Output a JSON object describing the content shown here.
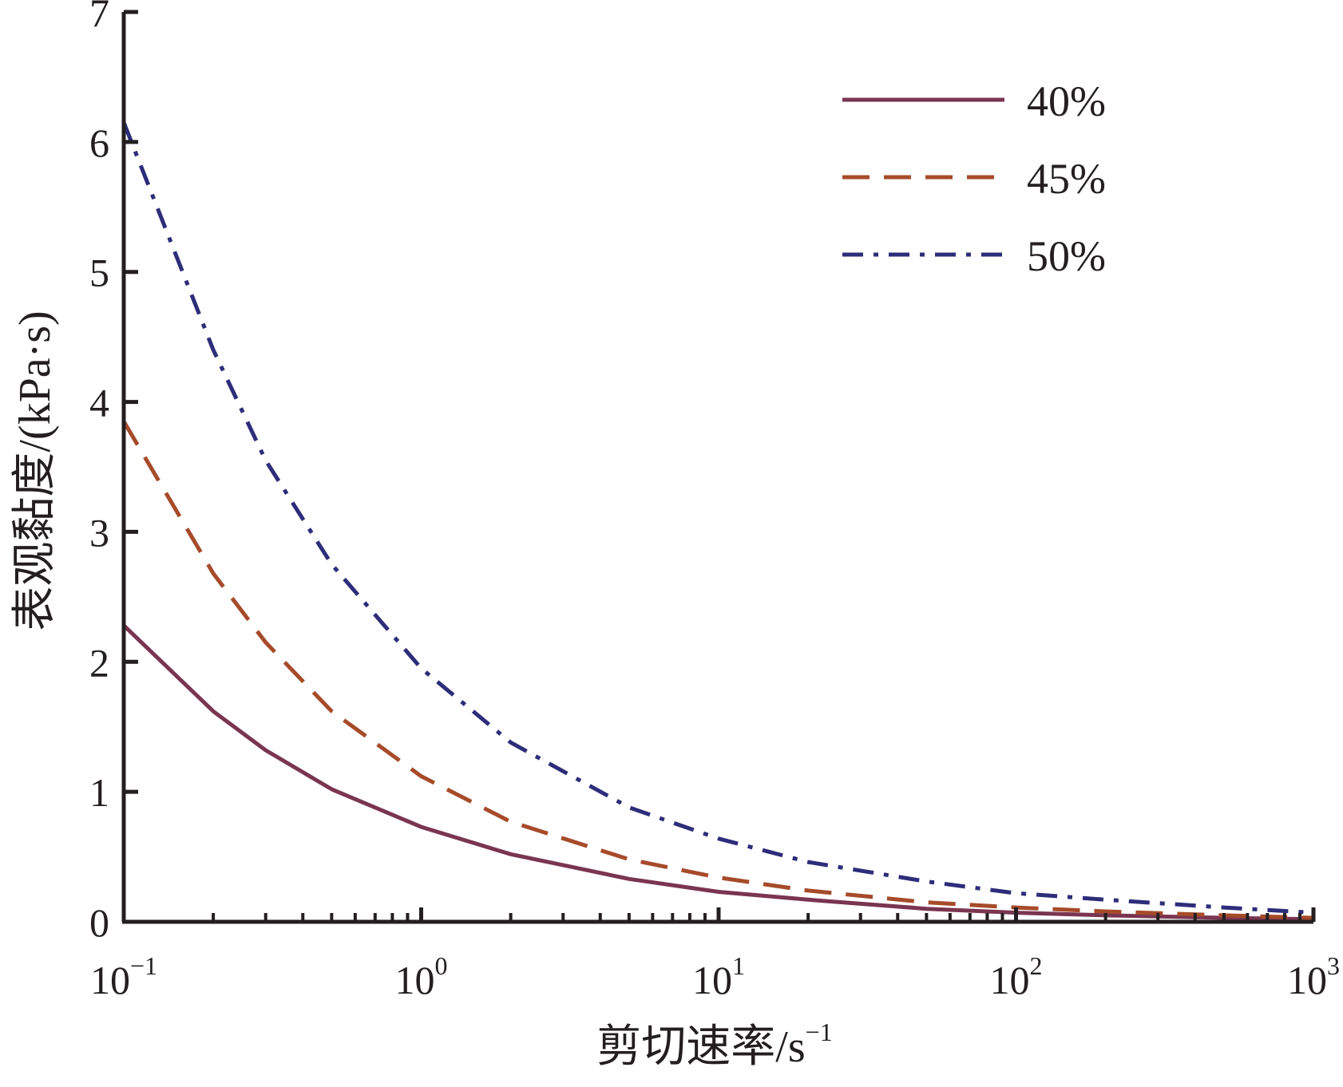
{
  "chart_data": {
    "type": "line",
    "xlabel": "剪切速率/s",
    "xlabel_sup": "−1",
    "ylabel": "表观黏度/(kPa·s)",
    "x_scale": "log",
    "xlim": [
      0.1,
      1000
    ],
    "ylim": [
      0,
      7
    ],
    "grid": false,
    "legend_position": "top-right",
    "y_ticks": [
      "0",
      "1",
      "2",
      "3",
      "4",
      "5",
      "6",
      "7"
    ],
    "x_ticks": [
      {
        "base": "10",
        "exp": "−1"
      },
      {
        "base": "10",
        "exp": "0"
      },
      {
        "base": "10",
        "exp": "1"
      },
      {
        "base": "10",
        "exp": "2"
      },
      {
        "base": "10",
        "exp": "3"
      }
    ],
    "series": [
      {
        "name": "40%",
        "color": "#7a3550",
        "dash": "solid",
        "x": [
          0.1,
          0.2,
          0.3,
          0.5,
          1,
          2,
          5,
          10,
          20,
          50,
          100,
          200,
          500,
          1000
        ],
        "y": [
          2.28,
          1.62,
          1.32,
          1.02,
          0.73,
          0.52,
          0.33,
          0.23,
          0.17,
          0.1,
          0.07,
          0.05,
          0.03,
          0.02
        ]
      },
      {
        "name": "45%",
        "color": "#a64b2a",
        "dash": "dashed",
        "x": [
          0.1,
          0.2,
          0.3,
          0.5,
          1,
          2,
          5,
          10,
          20,
          50,
          100,
          200,
          500,
          1000
        ],
        "y": [
          3.85,
          2.68,
          2.15,
          1.62,
          1.12,
          0.77,
          0.48,
          0.34,
          0.24,
          0.15,
          0.11,
          0.08,
          0.05,
          0.03
        ]
      },
      {
        "name": "50%",
        "color": "#2e2d7a",
        "dash": "dashdot",
        "x": [
          0.1,
          0.2,
          0.3,
          0.5,
          1,
          2,
          5,
          10,
          20,
          50,
          100,
          200,
          500,
          1000
        ],
        "y": [
          6.15,
          4.4,
          3.55,
          2.75,
          1.95,
          1.38,
          0.88,
          0.64,
          0.46,
          0.31,
          0.22,
          0.17,
          0.11,
          0.07
        ]
      }
    ]
  }
}
